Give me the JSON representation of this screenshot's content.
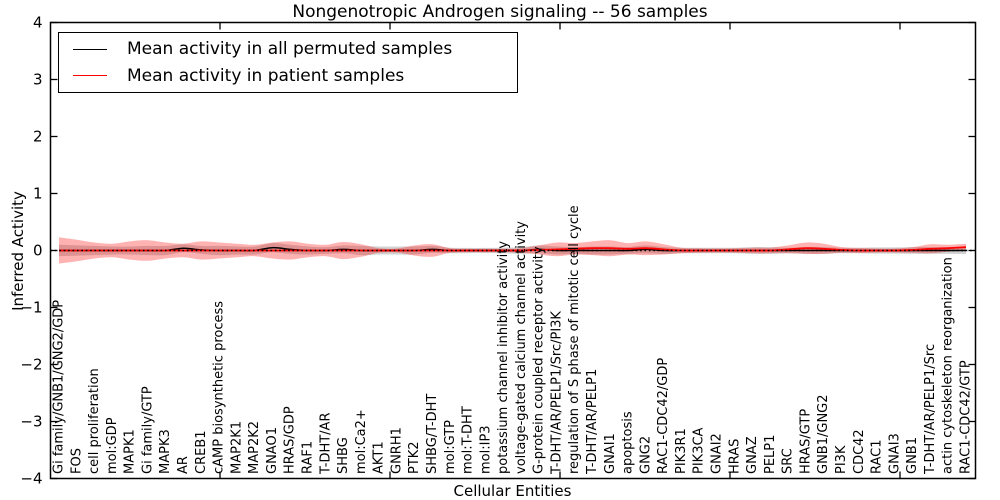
{
  "chart_data": {
    "type": "line",
    "title": "Nongenotropic Androgen signaling -- 56 samples",
    "xlabel": "Cellular Entities",
    "ylabel": "Inferred Activity",
    "ylim": [
      -4,
      4
    ],
    "yticks": [
      4,
      3,
      2,
      1,
      0,
      -1,
      -2,
      -3,
      -4
    ],
    "grid": false,
    "legend_position": "upper left",
    "zero_line": {
      "style": "dotted",
      "color": "#000000"
    },
    "band_colors": {
      "permuted": "rgba(125,125,125,0.35)",
      "patient": "rgba(255,0,0,0.30)"
    },
    "categories": [
      "Gi family/GNB1/GNG2/GDP",
      "FOS",
      "cell proliferation",
      "mol:GDP",
      "MAPK1",
      "Gi family/GTP",
      "MAPK3",
      "AR",
      "CREB1",
      "cAMP biosynthetic process",
      "MAP2K1",
      "MAP2K2",
      "GNAO1",
      "HRAS/GDP",
      "RAF1",
      "T-DHT/AR",
      "SHBG",
      "mol:Ca2+",
      "AKT1",
      "GNRH1",
      "PTK2",
      "SHBG/T-DHT",
      "mol:GTP",
      "mol:T-DHT",
      "mol:IP3",
      "potassium channel inhibitor activity",
      "voltage-gated calcium channel activity",
      "G-protein coupled receptor activity",
      "T-DHT/AR/PELP1/Src/PI3K",
      "regulation of S phase of mitotic cell cycle",
      "T-DHT/AR/PELP1",
      "GNAI1",
      "apoptosis",
      "GNG2",
      "RAC1-CDC42/GDP",
      "PIK3R1",
      "PIK3CA",
      "GNAI2",
      "HRAS",
      "GNAZ",
      "PELP1",
      "SRC",
      "HRAS/GTP",
      "GNB1/GNG2",
      "PI3K",
      "CDC42",
      "RAC1",
      "GNAI3",
      "GNB1",
      "T-DHT/AR/PELP1/Src",
      "actin cytoskeleton reorganization",
      "RAC1-CDC42/GTP"
    ],
    "series": [
      {
        "name": "Mean activity in all permuted samples",
        "color": "#000000",
        "means": [
          0,
          0,
          0,
          0,
          0,
          0,
          0,
          0.04,
          0.01,
          0,
          0,
          0,
          0.05,
          0.02,
          0,
          0,
          0.02,
          0,
          0,
          0,
          0,
          0.02,
          0,
          0,
          0,
          0,
          0,
          0.02,
          0,
          0,
          0,
          0,
          0,
          0.02,
          0,
          0,
          0,
          0,
          0,
          0,
          0,
          0,
          0,
          0,
          0,
          0,
          0,
          0,
          0,
          0,
          0,
          0
        ],
        "stds": [
          0.1,
          0.09,
          0.08,
          0.07,
          0.07,
          0.08,
          0.08,
          0.07,
          0.07,
          0.08,
          0.07,
          0.07,
          0.08,
          0.08,
          0.07,
          0.06,
          0.07,
          0.08,
          0.07,
          0.07,
          0.07,
          0.06,
          0.05,
          0.045,
          0.045,
          0.05,
          0.06,
          0.07,
          0.07,
          0.06,
          0.07,
          0.07,
          0.06,
          0.07,
          0.06,
          0.05,
          0.05,
          0.05,
          0.05,
          0.06,
          0.06,
          0.05,
          0.06,
          0.06,
          0.05,
          0.05,
          0.055,
          0.055,
          0.06,
          0.06,
          0.06,
          0.065
        ]
      },
      {
        "name": "Mean activity in patient samples",
        "color": "#ff0000",
        "means": [
          0,
          0,
          0,
          0,
          0,
          0,
          0,
          0,
          0,
          0,
          0,
          0,
          0,
          0,
          0,
          0,
          0,
          0,
          0,
          0,
          0,
          0,
          0,
          0,
          0,
          0,
          0,
          0.01,
          0.02,
          0.03,
          0.04,
          0.04,
          0.03,
          0.04,
          0.02,
          0,
          0,
          0,
          0,
          0,
          0,
          0.02,
          0.04,
          0.03,
          0.01,
          0,
          0,
          0,
          0.01,
          0.03,
          0.04,
          0.06
        ],
        "stds": [
          0.23,
          0.19,
          0.14,
          0.12,
          0.16,
          0.18,
          0.14,
          0.12,
          0.16,
          0.14,
          0.12,
          0.1,
          0.14,
          0.16,
          0.12,
          0.1,
          0.15,
          0.11,
          0.04,
          0.035,
          0.09,
          0.11,
          0.04,
          0.03,
          0.03,
          0.03,
          0.04,
          0.08,
          0.12,
          0.1,
          0.12,
          0.14,
          0.1,
          0.12,
          0.09,
          0.05,
          0.04,
          0.035,
          0.04,
          0.05,
          0.05,
          0.07,
          0.1,
          0.09,
          0.05,
          0.045,
          0.035,
          0.035,
          0.05,
          0.08,
          0.06,
          0.06
        ]
      }
    ]
  }
}
